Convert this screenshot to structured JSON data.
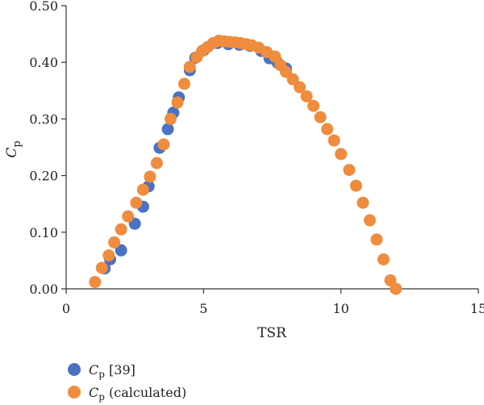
{
  "colors": {
    "series1": "#4a72c4",
    "series2": "#ef8c3e",
    "axis": "#333333"
  },
  "chart_data": {
    "type": "scatter",
    "xlabel": "TSR",
    "ylabel_main": "C",
    "ylabel_sub": "p",
    "xlim": [
      0,
      15
    ],
    "ylim": [
      0,
      0.5
    ],
    "xticks": [
      0,
      5,
      10,
      15
    ],
    "xtick_labels": [
      "0",
      "5",
      "10",
      "15"
    ],
    "yticks": [
      0,
      0.1,
      0.2,
      0.3,
      0.4,
      0.5
    ],
    "ytick_labels": [
      "0.00",
      "0.10",
      "0.20",
      "0.30",
      "0.40",
      "0.50"
    ],
    "grid": false,
    "legend_position": "bottom-left",
    "series": [
      {
        "name_main": "C",
        "name_sub": "p",
        "name_rest": " [39]",
        "color": "#4a72c4",
        "points": [
          [
            1.4,
            0.036
          ],
          [
            1.6,
            0.052
          ],
          [
            2.0,
            0.068
          ],
          [
            2.5,
            0.115
          ],
          [
            2.8,
            0.145
          ],
          [
            3.0,
            0.181
          ],
          [
            3.4,
            0.249
          ],
          [
            3.7,
            0.282
          ],
          [
            3.9,
            0.311
          ],
          [
            4.1,
            0.338
          ],
          [
            4.5,
            0.386
          ],
          [
            4.7,
            0.408
          ],
          [
            5.0,
            0.421
          ],
          [
            5.5,
            0.434
          ],
          [
            5.9,
            0.432
          ],
          [
            6.3,
            0.431
          ],
          [
            6.7,
            0.429
          ],
          [
            7.1,
            0.42
          ],
          [
            7.4,
            0.407
          ],
          [
            7.7,
            0.399
          ],
          [
            8.0,
            0.389
          ]
        ]
      },
      {
        "name_main": "C",
        "name_sub": "p",
        "name_rest": " (calculated)",
        "color": "#ef8c3e",
        "points": [
          [
            1.05,
            0.012
          ],
          [
            1.3,
            0.037
          ],
          [
            1.55,
            0.059
          ],
          [
            1.75,
            0.082
          ],
          [
            2.0,
            0.105
          ],
          [
            2.25,
            0.128
          ],
          [
            2.55,
            0.152
          ],
          [
            2.8,
            0.175
          ],
          [
            3.05,
            0.198
          ],
          [
            3.3,
            0.222
          ],
          [
            3.55,
            0.255
          ],
          [
            3.8,
            0.3
          ],
          [
            4.05,
            0.329
          ],
          [
            4.3,
            0.362
          ],
          [
            4.5,
            0.392
          ],
          [
            4.75,
            0.409
          ],
          [
            4.95,
            0.42
          ],
          [
            5.15,
            0.427
          ],
          [
            5.35,
            0.434
          ],
          [
            5.55,
            0.438
          ],
          [
            5.75,
            0.437
          ],
          [
            5.95,
            0.436
          ],
          [
            6.15,
            0.435
          ],
          [
            6.35,
            0.434
          ],
          [
            6.55,
            0.432
          ],
          [
            6.75,
            0.43
          ],
          [
            7.0,
            0.426
          ],
          [
            7.3,
            0.418
          ],
          [
            7.6,
            0.41
          ],
          [
            7.8,
            0.395
          ],
          [
            8.0,
            0.383
          ],
          [
            8.25,
            0.37
          ],
          [
            8.5,
            0.356
          ],
          [
            8.75,
            0.34
          ],
          [
            9.0,
            0.323
          ],
          [
            9.25,
            0.303
          ],
          [
            9.5,
            0.282
          ],
          [
            9.75,
            0.262
          ],
          [
            10.0,
            0.238
          ],
          [
            10.3,
            0.21
          ],
          [
            10.55,
            0.182
          ],
          [
            10.8,
            0.152
          ],
          [
            11.05,
            0.121
          ],
          [
            11.3,
            0.087
          ],
          [
            11.55,
            0.052
          ],
          [
            11.8,
            0.015
          ],
          [
            12.0,
            0.0
          ]
        ]
      }
    ]
  }
}
